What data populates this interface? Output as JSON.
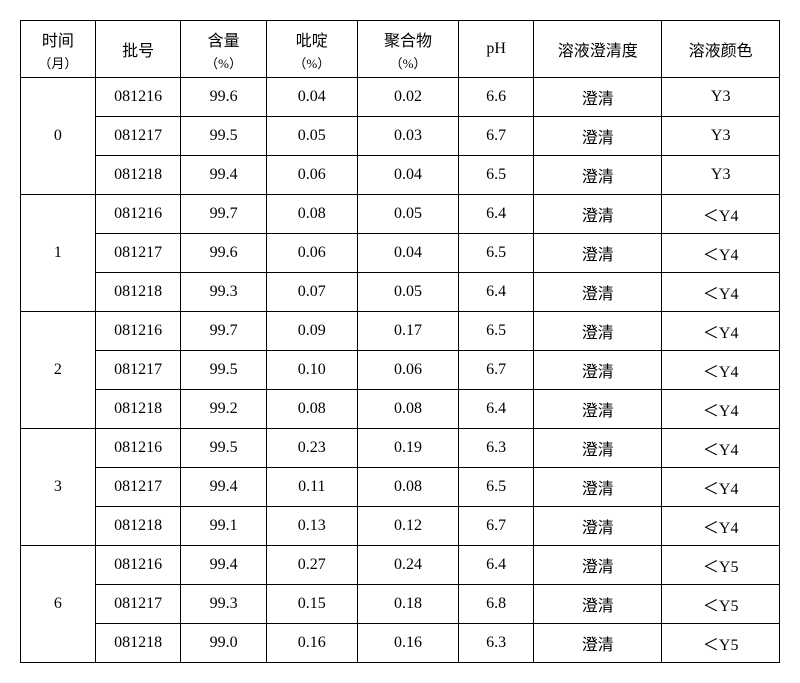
{
  "headers": {
    "time": "时间",
    "time_unit": "（月）",
    "batch": "批号",
    "content": "含量",
    "content_unit": "（%）",
    "pyridine": "吡啶",
    "pyridine_unit": "（%）",
    "polymer": "聚合物",
    "polymer_unit": "（%）",
    "ph": "pH",
    "clarity": "溶液澄清度",
    "color": "溶液颜色"
  },
  "groups": [
    {
      "time": "0",
      "rows": [
        {
          "batch": "081216",
          "content": "99.6",
          "pyridine": "0.04",
          "polymer": "0.02",
          "ph": "6.6",
          "clarity": "澄清",
          "color": "Y3"
        },
        {
          "batch": "081217",
          "content": "99.5",
          "pyridine": "0.05",
          "polymer": "0.03",
          "ph": "6.7",
          "clarity": "澄清",
          "color": "Y3"
        },
        {
          "batch": "081218",
          "content": "99.4",
          "pyridine": "0.06",
          "polymer": "0.04",
          "ph": "6.5",
          "clarity": "澄清",
          "color": "Y3"
        }
      ]
    },
    {
      "time": "1",
      "rows": [
        {
          "batch": "081216",
          "content": "99.7",
          "pyridine": "0.08",
          "polymer": "0.05",
          "ph": "6.4",
          "clarity": "澄清",
          "color": "＜Y4"
        },
        {
          "batch": "081217",
          "content": "99.6",
          "pyridine": "0.06",
          "polymer": "0.04",
          "ph": "6.5",
          "clarity": "澄清",
          "color": "＜Y4"
        },
        {
          "batch": "081218",
          "content": "99.3",
          "pyridine": "0.07",
          "polymer": "0.05",
          "ph": "6.4",
          "clarity": "澄清",
          "color": "＜Y4"
        }
      ]
    },
    {
      "time": "2",
      "rows": [
        {
          "batch": "081216",
          "content": "99.7",
          "pyridine": "0.09",
          "polymer": "0.17",
          "ph": "6.5",
          "clarity": "澄清",
          "color": "＜Y4"
        },
        {
          "batch": "081217",
          "content": "99.5",
          "pyridine": "0.10",
          "polymer": "0.06",
          "ph": "6.7",
          "clarity": "澄清",
          "color": "＜Y4"
        },
        {
          "batch": "081218",
          "content": "99.2",
          "pyridine": "0.08",
          "polymer": "0.08",
          "ph": "6.4",
          "clarity": "澄清",
          "color": "＜Y4"
        }
      ]
    },
    {
      "time": "3",
      "rows": [
        {
          "batch": "081216",
          "content": "99.5",
          "pyridine": "0.23",
          "polymer": "0.19",
          "ph": "6.3",
          "clarity": "澄清",
          "color": "＜Y4"
        },
        {
          "batch": "081217",
          "content": "99.4",
          "pyridine": "0.11",
          "polymer": "0.08",
          "ph": "6.5",
          "clarity": "澄清",
          "color": "＜Y4"
        },
        {
          "batch": "081218",
          "content": "99.1",
          "pyridine": "0.13",
          "polymer": "0.12",
          "ph": "6.7",
          "clarity": "澄清",
          "color": "＜Y4"
        }
      ]
    },
    {
      "time": "6",
      "rows": [
        {
          "batch": "081216",
          "content": "99.4",
          "pyridine": "0.27",
          "polymer": "0.24",
          "ph": "6.4",
          "clarity": "澄清",
          "color": "＜Y5"
        },
        {
          "batch": "081217",
          "content": "99.3",
          "pyridine": "0.15",
          "polymer": "0.18",
          "ph": "6.8",
          "clarity": "澄清",
          "color": "＜Y5"
        },
        {
          "batch": "081218",
          "content": "99.0",
          "pyridine": "0.16",
          "polymer": "0.16",
          "ph": "6.3",
          "clarity": "澄清",
          "color": "＜Y5"
        }
      ]
    }
  ]
}
